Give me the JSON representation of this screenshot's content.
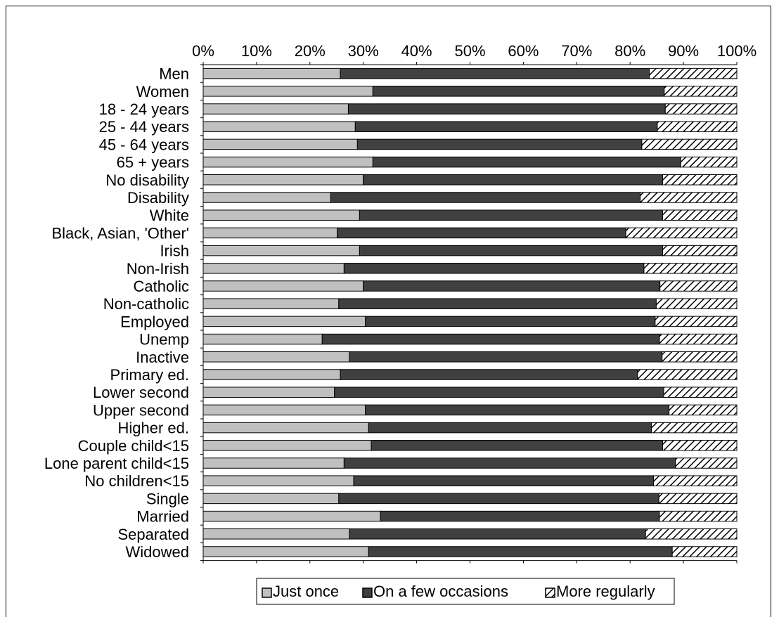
{
  "chart_data": {
    "type": "bar",
    "orientation": "horizontal",
    "stacked": true,
    "percent": true,
    "xlim": [
      0,
      100
    ],
    "x_ticks": [
      "0%",
      "10%",
      "20%",
      "30%",
      "40%",
      "50%",
      "60%",
      "70%",
      "80%",
      "90%",
      "100%"
    ],
    "categories": [
      "Men",
      "Women",
      "18 - 24 years",
      "25 - 44 years",
      "45 - 64 years",
      "65 + years",
      "No disability",
      "Disability",
      "White",
      "Black, Asian, 'Other'",
      "Irish",
      "Non-Irish",
      "Catholic",
      "Non-catholic",
      "Employed",
      "Unemp",
      "Inactive",
      "Primary ed.",
      "Lower second",
      "Upper second",
      "Higher ed.",
      "Couple child<15",
      "Lone parent child<15",
      "No children<15",
      "Single",
      "Married",
      "Separated",
      "Widowed"
    ],
    "series": [
      {
        "name": "Just once",
        "color": "#c0c0c0",
        "pattern": "solid",
        "values": [
          25.7,
          31.8,
          27.2,
          28.5,
          28.9,
          31.8,
          30.0,
          23.9,
          29.3,
          25.1,
          29.3,
          26.4,
          30.0,
          25.4,
          30.4,
          22.3,
          27.4,
          25.7,
          24.6,
          30.4,
          31.0,
          31.5,
          26.4,
          28.2,
          25.4,
          33.2,
          27.4,
          31.0
        ]
      },
      {
        "name": "On a few occasions",
        "color": "#404040",
        "pattern": "solid",
        "values": [
          57.9,
          54.6,
          59.4,
          56.6,
          53.3,
          57.7,
          56.1,
          58.0,
          56.8,
          54.1,
          56.8,
          56.2,
          55.6,
          59.5,
          54.3,
          63.2,
          58.6,
          55.7,
          61.7,
          56.9,
          53.0,
          54.6,
          62.1,
          56.2,
          60.0,
          52.3,
          55.5,
          56.9
        ]
      },
      {
        "name": "More regularly",
        "color": "#ffffff",
        "pattern": "diagonal-hatch",
        "values": [
          16.4,
          13.6,
          13.4,
          14.9,
          17.8,
          10.5,
          13.9,
          18.1,
          13.9,
          20.8,
          13.9,
          17.4,
          14.4,
          15.1,
          15.3,
          14.5,
          14.0,
          18.6,
          13.7,
          12.7,
          16.0,
          13.9,
          11.5,
          15.6,
          14.6,
          14.5,
          17.1,
          12.1
        ]
      }
    ],
    "legend_position": "bottom"
  }
}
